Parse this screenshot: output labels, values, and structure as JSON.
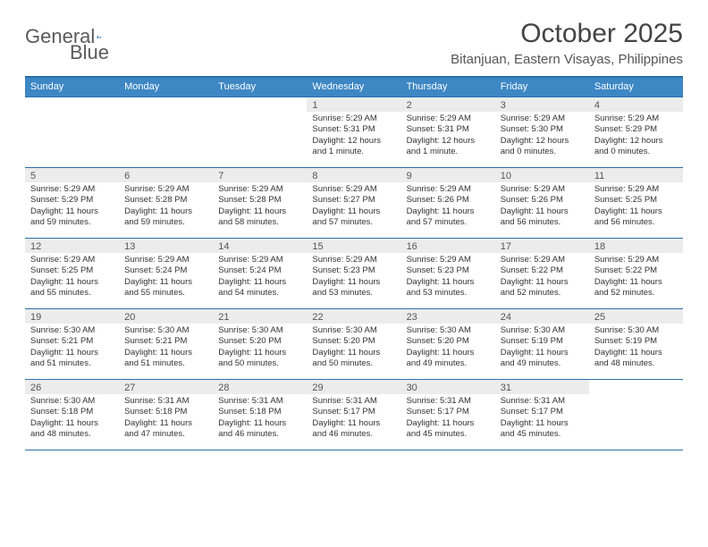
{
  "brand": {
    "name1": "General",
    "name2": "Blue"
  },
  "title": "October 2025",
  "location": "Bitanjuan, Eastern Visayas, Philippines",
  "colors": {
    "header_bg": "#3d87c4",
    "header_border": "#2b6fa8",
    "daynum_bg": "#ececec",
    "text": "#333333",
    "logo_accent": "#2f74ae"
  },
  "weekdays": [
    "Sunday",
    "Monday",
    "Tuesday",
    "Wednesday",
    "Thursday",
    "Friday",
    "Saturday"
  ],
  "weeks": [
    [
      {
        "n": "",
        "sunrise": "",
        "sunset": "",
        "daylight": ""
      },
      {
        "n": "",
        "sunrise": "",
        "sunset": "",
        "daylight": ""
      },
      {
        "n": "",
        "sunrise": "",
        "sunset": "",
        "daylight": ""
      },
      {
        "n": "1",
        "sunrise": "Sunrise: 5:29 AM",
        "sunset": "Sunset: 5:31 PM",
        "daylight": "Daylight: 12 hours and 1 minute."
      },
      {
        "n": "2",
        "sunrise": "Sunrise: 5:29 AM",
        "sunset": "Sunset: 5:31 PM",
        "daylight": "Daylight: 12 hours and 1 minute."
      },
      {
        "n": "3",
        "sunrise": "Sunrise: 5:29 AM",
        "sunset": "Sunset: 5:30 PM",
        "daylight": "Daylight: 12 hours and 0 minutes."
      },
      {
        "n": "4",
        "sunrise": "Sunrise: 5:29 AM",
        "sunset": "Sunset: 5:29 PM",
        "daylight": "Daylight: 12 hours and 0 minutes."
      }
    ],
    [
      {
        "n": "5",
        "sunrise": "Sunrise: 5:29 AM",
        "sunset": "Sunset: 5:29 PM",
        "daylight": "Daylight: 11 hours and 59 minutes."
      },
      {
        "n": "6",
        "sunrise": "Sunrise: 5:29 AM",
        "sunset": "Sunset: 5:28 PM",
        "daylight": "Daylight: 11 hours and 59 minutes."
      },
      {
        "n": "7",
        "sunrise": "Sunrise: 5:29 AM",
        "sunset": "Sunset: 5:28 PM",
        "daylight": "Daylight: 11 hours and 58 minutes."
      },
      {
        "n": "8",
        "sunrise": "Sunrise: 5:29 AM",
        "sunset": "Sunset: 5:27 PM",
        "daylight": "Daylight: 11 hours and 57 minutes."
      },
      {
        "n": "9",
        "sunrise": "Sunrise: 5:29 AM",
        "sunset": "Sunset: 5:26 PM",
        "daylight": "Daylight: 11 hours and 57 minutes."
      },
      {
        "n": "10",
        "sunrise": "Sunrise: 5:29 AM",
        "sunset": "Sunset: 5:26 PM",
        "daylight": "Daylight: 11 hours and 56 minutes."
      },
      {
        "n": "11",
        "sunrise": "Sunrise: 5:29 AM",
        "sunset": "Sunset: 5:25 PM",
        "daylight": "Daylight: 11 hours and 56 minutes."
      }
    ],
    [
      {
        "n": "12",
        "sunrise": "Sunrise: 5:29 AM",
        "sunset": "Sunset: 5:25 PM",
        "daylight": "Daylight: 11 hours and 55 minutes."
      },
      {
        "n": "13",
        "sunrise": "Sunrise: 5:29 AM",
        "sunset": "Sunset: 5:24 PM",
        "daylight": "Daylight: 11 hours and 55 minutes."
      },
      {
        "n": "14",
        "sunrise": "Sunrise: 5:29 AM",
        "sunset": "Sunset: 5:24 PM",
        "daylight": "Daylight: 11 hours and 54 minutes."
      },
      {
        "n": "15",
        "sunrise": "Sunrise: 5:29 AM",
        "sunset": "Sunset: 5:23 PM",
        "daylight": "Daylight: 11 hours and 53 minutes."
      },
      {
        "n": "16",
        "sunrise": "Sunrise: 5:29 AM",
        "sunset": "Sunset: 5:23 PM",
        "daylight": "Daylight: 11 hours and 53 minutes."
      },
      {
        "n": "17",
        "sunrise": "Sunrise: 5:29 AM",
        "sunset": "Sunset: 5:22 PM",
        "daylight": "Daylight: 11 hours and 52 minutes."
      },
      {
        "n": "18",
        "sunrise": "Sunrise: 5:29 AM",
        "sunset": "Sunset: 5:22 PM",
        "daylight": "Daylight: 11 hours and 52 minutes."
      }
    ],
    [
      {
        "n": "19",
        "sunrise": "Sunrise: 5:30 AM",
        "sunset": "Sunset: 5:21 PM",
        "daylight": "Daylight: 11 hours and 51 minutes."
      },
      {
        "n": "20",
        "sunrise": "Sunrise: 5:30 AM",
        "sunset": "Sunset: 5:21 PM",
        "daylight": "Daylight: 11 hours and 51 minutes."
      },
      {
        "n": "21",
        "sunrise": "Sunrise: 5:30 AM",
        "sunset": "Sunset: 5:20 PM",
        "daylight": "Daylight: 11 hours and 50 minutes."
      },
      {
        "n": "22",
        "sunrise": "Sunrise: 5:30 AM",
        "sunset": "Sunset: 5:20 PM",
        "daylight": "Daylight: 11 hours and 50 minutes."
      },
      {
        "n": "23",
        "sunrise": "Sunrise: 5:30 AM",
        "sunset": "Sunset: 5:20 PM",
        "daylight": "Daylight: 11 hours and 49 minutes."
      },
      {
        "n": "24",
        "sunrise": "Sunrise: 5:30 AM",
        "sunset": "Sunset: 5:19 PM",
        "daylight": "Daylight: 11 hours and 49 minutes."
      },
      {
        "n": "25",
        "sunrise": "Sunrise: 5:30 AM",
        "sunset": "Sunset: 5:19 PM",
        "daylight": "Daylight: 11 hours and 48 minutes."
      }
    ],
    [
      {
        "n": "26",
        "sunrise": "Sunrise: 5:30 AM",
        "sunset": "Sunset: 5:18 PM",
        "daylight": "Daylight: 11 hours and 48 minutes."
      },
      {
        "n": "27",
        "sunrise": "Sunrise: 5:31 AM",
        "sunset": "Sunset: 5:18 PM",
        "daylight": "Daylight: 11 hours and 47 minutes."
      },
      {
        "n": "28",
        "sunrise": "Sunrise: 5:31 AM",
        "sunset": "Sunset: 5:18 PM",
        "daylight": "Daylight: 11 hours and 46 minutes."
      },
      {
        "n": "29",
        "sunrise": "Sunrise: 5:31 AM",
        "sunset": "Sunset: 5:17 PM",
        "daylight": "Daylight: 11 hours and 46 minutes."
      },
      {
        "n": "30",
        "sunrise": "Sunrise: 5:31 AM",
        "sunset": "Sunset: 5:17 PM",
        "daylight": "Daylight: 11 hours and 45 minutes."
      },
      {
        "n": "31",
        "sunrise": "Sunrise: 5:31 AM",
        "sunset": "Sunset: 5:17 PM",
        "daylight": "Daylight: 11 hours and 45 minutes."
      },
      {
        "n": "",
        "sunrise": "",
        "sunset": "",
        "daylight": ""
      }
    ]
  ]
}
